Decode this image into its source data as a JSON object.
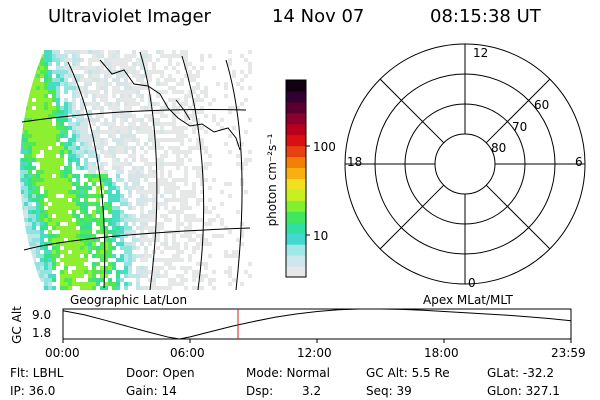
{
  "header": {
    "instrument": "Ultraviolet Imager",
    "date": "14 Nov 07",
    "time": "08:15:38 UT"
  },
  "image_panel": {
    "label": "Geographic Lat/Lon"
  },
  "colorbar": {
    "unit_label": "photon cm⁻²s⁻¹",
    "ticks": [
      {
        "value": 10,
        "label": "10"
      },
      {
        "value": 100,
        "label": "100"
      }
    ],
    "colors": [
      "#e8e8e8",
      "#cce8ec",
      "#a0e8e8",
      "#40d8d0",
      "#30e0a0",
      "#40e860",
      "#80f030",
      "#c8f020",
      "#f0e020",
      "#f8b010",
      "#f08008",
      "#e84010",
      "#d81010",
      "#b8001c",
      "#8c0030",
      "#5a0030",
      "#300030",
      "#100010"
    ]
  },
  "polar_plot": {
    "label": "Apex MLat/MLT",
    "mlt_labels": {
      "top": "12",
      "bottom": "0",
      "left": "18",
      "right": "6"
    },
    "lat_labels": [
      "60",
      "70",
      "80"
    ]
  },
  "chart_data": {
    "type": "line",
    "title": "",
    "ylabel": "GC Alt",
    "yticks": [
      "9.0",
      "1.8"
    ],
    "ylim": [
      1.8,
      9.0
    ],
    "x_tick_labels": [
      "00:00",
      "06:00",
      "12:00",
      "18:00",
      "23:59"
    ],
    "x_hours": [
      0,
      1,
      2,
      3,
      4,
      5,
      5.5,
      6,
      7,
      8,
      9,
      10,
      11,
      12,
      13,
      14,
      15,
      16,
      17,
      18,
      19,
      20,
      21,
      22,
      23,
      23.98
    ],
    "gc_alt": [
      8.6,
      7.6,
      6.3,
      4.9,
      3.5,
      2.2,
      1.8,
      2.3,
      3.6,
      4.9,
      6.0,
      7.0,
      7.8,
      8.4,
      8.8,
      9.0,
      9.0,
      8.9,
      8.7,
      8.4,
      8.1,
      7.8,
      7.5,
      7.1,
      6.7,
      6.2
    ],
    "current_time_hours": 8.26,
    "marker_color": "#d02020"
  },
  "status": {
    "filter": "Flt: LBHL",
    "ip": "IP: 36.0",
    "door": "Door: Open",
    "gain": "Gain: 14",
    "mode": "Mode: Normal",
    "dsp_label": "Dsp:",
    "dsp_value": "3.2",
    "gc_alt": "GC Alt: 5.5 Re",
    "seq": "Seq: 39",
    "glat": "GLat: -32.2",
    "glon": "GLon: 327.1"
  }
}
